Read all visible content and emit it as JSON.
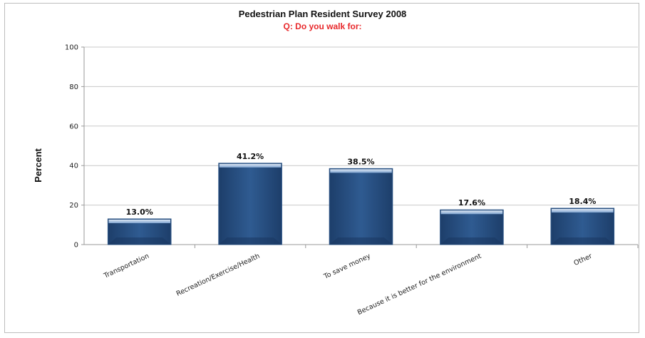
{
  "chart_data": {
    "type": "bar",
    "title": "Pedestrian Plan Resident Survey 2008",
    "subtitle": "Q:  Do you walk for:",
    "ylabel": "Percent",
    "xlabel": "",
    "ylim": [
      0,
      100
    ],
    "yticks": [
      0,
      20,
      40,
      60,
      80,
      100
    ],
    "grid": true,
    "categories": [
      "Transportation",
      "Recreation/Exercise/Health",
      "To save money",
      "Because it is better for the environment",
      "Other"
    ],
    "values": [
      13.0,
      41.2,
      38.5,
      17.6,
      18.4
    ],
    "data_labels": [
      "13.0%",
      "41.2%",
      "38.5%",
      "17.6%",
      "18.4%"
    ],
    "bar_color": "#2b5486",
    "title_color": "#111111",
    "subtitle_color": "#e8282b"
  }
}
